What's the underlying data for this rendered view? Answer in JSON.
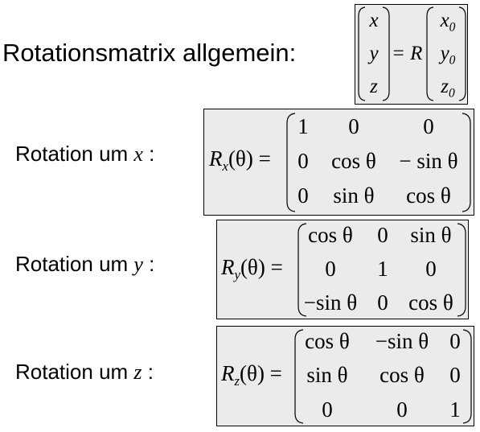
{
  "title": "Rotationsmatrix allgemein:",
  "general": {
    "lhs": [
      "x",
      "y",
      "z"
    ],
    "eq": "= R",
    "rhs": [
      {
        "base": "x",
        "sub": "0"
      },
      {
        "base": "y",
        "sub": "0"
      },
      {
        "base": "z",
        "sub": "0"
      }
    ]
  },
  "rotations": [
    {
      "label_prefix": "Rotation um ",
      "axis": "x",
      "label_suffix": " :",
      "lhs_R": "R",
      "lhs_sub": "x",
      "lhs_arg": "(θ) =",
      "rows": [
        [
          "1",
          "0",
          "0"
        ],
        [
          "0",
          "cos θ",
          "− sin θ"
        ],
        [
          "0",
          "sin θ",
          "cos θ"
        ]
      ]
    },
    {
      "label_prefix": "Rotation um ",
      "axis": "y",
      "label_suffix": " :",
      "lhs_R": "R",
      "lhs_sub": "y",
      "lhs_arg": "(θ) =",
      "rows": [
        [
          "cos θ",
          "0",
          "sin θ"
        ],
        [
          "0",
          "1",
          "0"
        ],
        [
          "−sin θ",
          "0",
          "cos θ"
        ]
      ]
    },
    {
      "label_prefix": "Rotation um ",
      "axis": "z",
      "label_suffix": " :",
      "lhs_R": "R",
      "lhs_sub": "z",
      "lhs_arg": "(θ) =",
      "rows": [
        [
          "cos θ",
          "−sin θ",
          "0"
        ],
        [
          "sin θ",
          "cos θ",
          "0"
        ],
        [
          "0",
          "0",
          "1"
        ]
      ]
    }
  ]
}
